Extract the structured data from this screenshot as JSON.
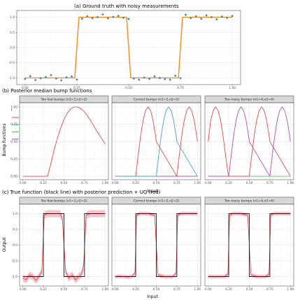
{
  "colors": {
    "panel_bg": "#ffffff",
    "grid_major": "#ebebeb",
    "grid_minor": "#f5f5f5",
    "panel_border": "#333333",
    "strip_bg": "#d9d9d9",
    "strip_border": "#333333",
    "points": "#3d87c0",
    "truth_orange": "#f28e1c",
    "truth_black": "#1a1a1a",
    "pred_red": "#e3383b",
    "band": "#f08fa0",
    "bump1": "#e64a4a",
    "bump2": "#4aa0c8",
    "bump3": "#5fbf5a",
    "bump4": "#b04fc0"
  },
  "chart_data": [
    {
      "type": "scatter",
      "title": "(a) Ground truth with noisy measurements",
      "xlim": [
        -0.04,
        1.04
      ],
      "ylim": [
        -1.22,
        1.22
      ],
      "x_ticks": [
        "0.00",
        "0.25",
        "0.50",
        "0.75",
        "1.00"
      ],
      "y_ticks": [
        "-1.0",
        "-0.5",
        "0.0",
        "0.5",
        "1.0"
      ],
      "truth_line": {
        "x": [
          0.0,
          0.24,
          0.25,
          0.26,
          0.49,
          0.5,
          0.51,
          0.74,
          0.75,
          0.76,
          1.0
        ],
        "y": [
          -1.0,
          -1.0,
          0.0,
          1.0,
          1.0,
          0.0,
          -1.0,
          -1.0,
          0.0,
          1.0,
          1.0
        ]
      },
      "points": {
        "x": [
          0.0,
          0.025,
          0.05,
          0.075,
          0.1,
          0.125,
          0.15,
          0.175,
          0.2,
          0.225,
          0.25,
          0.275,
          0.3,
          0.325,
          0.35,
          0.375,
          0.4,
          0.425,
          0.45,
          0.475,
          0.5,
          0.525,
          0.55,
          0.575,
          0.6,
          0.625,
          0.65,
          0.675,
          0.7,
          0.725,
          0.75,
          0.775,
          0.8,
          0.825,
          0.85,
          0.875,
          0.9,
          0.925,
          0.95,
          0.975,
          1.0
        ],
        "y": [
          -1.03,
          -0.94,
          -1.07,
          -1.01,
          -0.97,
          -0.91,
          -1.02,
          -1.08,
          -0.98,
          -0.95,
          -1.05,
          0.95,
          1.03,
          0.97,
          1.0,
          1.09,
          0.96,
          1.01,
          1.04,
          0.98,
          0.94,
          -1.02,
          -1.06,
          -0.99,
          -1.03,
          -0.95,
          -1.0,
          -1.04,
          -1.06,
          -0.93,
          -1.01,
          1.08,
          0.97,
          1.03,
          0.95,
          1.06,
          1.0,
          0.93,
          1.02,
          0.98,
          1.04
        ]
      }
    },
    {
      "type": "line",
      "title": "(b) Posterior median bump functions",
      "ylabel": "Bump functions",
      "xlabel": "Input",
      "xlim": [
        -0.04,
        1.04
      ],
      "ylim": [
        -0.05,
        1.06
      ],
      "x_ticks": [
        "0.00",
        "0.25",
        "0.50",
        "0.75",
        "1.00"
      ],
      "y_ticks": [
        "0.00",
        "0.25",
        "0.50",
        "0.75",
        "1.00"
      ],
      "legend": {
        "title": "i",
        "items": [
          "1",
          "2",
          "3",
          "4"
        ]
      },
      "panels": [
        {
          "label": "Too few bumps (n1=1,n2=2)",
          "series": [
            {
              "name": "1",
              "x": [
                0.0,
                0.3,
                0.34,
                0.38,
                0.42,
                0.46,
                0.5,
                0.54,
                0.58,
                0.62,
                0.66,
                0.7,
                0.74,
                0.78,
                0.82,
                0.86,
                0.9,
                0.94,
                0.98,
                1.0
              ],
              "y": [
                0.0,
                0.0,
                0.18,
                0.38,
                0.55,
                0.7,
                0.82,
                0.91,
                0.97,
                1.0,
                1.0,
                0.98,
                0.94,
                0.88,
                0.81,
                0.73,
                0.65,
                0.58,
                0.5,
                0.47
              ]
            }
          ]
        },
        {
          "label": "Correct bumps (n1=2,n2=2)",
          "series": [
            {
              "name": "1",
              "x": [
                0.0,
                0.25,
                0.28,
                0.31,
                0.34,
                0.37,
                0.4,
                0.43,
                0.46,
                0.49,
                0.5,
                0.75,
                0.78,
                0.81,
                0.84,
                0.87,
                0.9,
                0.93,
                0.96,
                0.99,
                1.0
              ],
              "y": [
                0.0,
                0.0,
                0.31,
                0.59,
                0.81,
                0.95,
                1.0,
                0.95,
                0.81,
                0.59,
                0.5,
                0.0,
                0.31,
                0.59,
                0.81,
                0.95,
                1.0,
                0.95,
                0.81,
                0.59,
                0.5
              ]
            },
            {
              "name": "2",
              "x": [
                0.0,
                0.03,
                0.06,
                0.09,
                0.12,
                0.15,
                0.18,
                0.21,
                0.24,
                0.25,
                0.5,
                0.53,
                0.56,
                0.59,
                0.62,
                0.65,
                0.68,
                0.71,
                0.74,
                0.75,
                1.0
              ],
              "y": [
                0.0,
                0.0,
                0.0,
                0.0,
                0.0,
                0.0,
                0.0,
                0.0,
                0.0,
                0.0,
                0.0,
                0.31,
                0.59,
                0.81,
                0.95,
                1.0,
                0.95,
                0.81,
                0.59,
                0.5,
                0.0
              ]
            },
            {
              "name": "3",
              "x": [
                0.0,
                1.0
              ],
              "y": [
                0.0,
                0.0
              ]
            },
            {
              "name": "4",
              "x": [
                0.0,
                1.0
              ],
              "y": [
                0.0,
                0.0
              ]
            }
          ]
        },
        {
          "label": "Too many bumps (n1=4,n2=4)",
          "series": [
            {
              "name": "1",
              "x": [
                0.0,
                0.03,
                0.06,
                0.09,
                0.12,
                0.15,
                0.18,
                0.21,
                0.24,
                0.25,
                0.5,
                0.53,
                0.56,
                0.59,
                0.62,
                0.65,
                0.68,
                0.71,
                0.74,
                0.75,
                1.0
              ],
              "y": [
                0.5,
                0.8,
                0.95,
                1.0,
                0.95,
                0.81,
                0.59,
                0.31,
                0.05,
                0.0,
                0.0,
                0.31,
                0.59,
                0.81,
                0.95,
                1.0,
                0.95,
                0.81,
                0.59,
                0.5,
                0.0
              ]
            },
            {
              "name": "4",
              "x": [
                0.0,
                0.25,
                0.28,
                0.31,
                0.34,
                0.37,
                0.4,
                0.43,
                0.46,
                0.49,
                0.5,
                0.75,
                0.78,
                0.81,
                0.84,
                0.87,
                0.9,
                0.93,
                0.96,
                0.99,
                1.0
              ],
              "y": [
                0.0,
                0.0,
                0.31,
                0.59,
                0.81,
                0.95,
                1.0,
                0.95,
                0.81,
                0.59,
                0.5,
                0.0,
                0.31,
                0.59,
                0.81,
                0.95,
                1.0,
                0.95,
                0.81,
                0.59,
                0.5
              ]
            },
            {
              "name": "3",
              "x": [
                0.0,
                1.0
              ],
              "y": [
                0.0,
                0.0
              ]
            }
          ]
        }
      ]
    },
    {
      "type": "line",
      "title": "(c) True function (black line) with posterior prediction + UQ (red)",
      "ylabel": "Output",
      "xlabel": "Input",
      "xlim": [
        -0.04,
        1.04
      ],
      "ylim": [
        -1.3,
        1.3
      ],
      "x_ticks": [
        "0.00",
        "0.25",
        "0.50",
        "0.75",
        "1.00"
      ],
      "y_ticks": [
        "-1.0",
        "-0.5",
        "0.0",
        "0.5",
        "1.0"
      ],
      "panels": [
        {
          "label": "Too few bumps (n1=1,n2=2)",
          "truth": {
            "x": [
              0.0,
              0.25,
              0.25,
              0.5,
              0.5,
              0.75,
              0.75,
              1.0
            ],
            "y": [
              -1.0,
              -1.0,
              1.0,
              1.0,
              -1.0,
              -1.0,
              1.0,
              1.0
            ]
          },
          "pred": {
            "x": [
              0.0,
              0.04,
              0.08,
              0.12,
              0.16,
              0.2,
              0.23,
              0.26,
              0.3,
              0.35,
              0.4,
              0.45,
              0.48,
              0.52,
              0.56,
              0.6,
              0.64,
              0.68,
              0.72,
              0.74,
              0.77,
              0.82,
              0.88,
              0.94,
              1.0
            ],
            "y": [
              -1.05,
              -1.1,
              -0.95,
              -1.0,
              -1.12,
              -0.98,
              -0.85,
              0.95,
              1.0,
              1.0,
              1.0,
              1.0,
              0.85,
              -0.85,
              -1.05,
              -0.95,
              -1.1,
              -1.0,
              -0.9,
              -0.6,
              0.95,
              1.0,
              1.0,
              1.0,
              1.0
            ]
          },
          "band": 0.11
        },
        {
          "label": "Correct bumps (n1=2,n2=2)",
          "truth": {
            "x": [
              0.0,
              0.25,
              0.25,
              0.5,
              0.5,
              0.75,
              0.75,
              1.0
            ],
            "y": [
              -1.0,
              -1.0,
              1.0,
              1.0,
              -1.0,
              -1.0,
              1.0,
              1.0
            ]
          },
          "pred": {
            "x": [
              0.0,
              0.05,
              0.1,
              0.15,
              0.2,
              0.24,
              0.26,
              0.3,
              0.4,
              0.48,
              0.52,
              0.6,
              0.7,
              0.74,
              0.76,
              0.8,
              0.9,
              1.0
            ],
            "y": [
              -1.0,
              -0.99,
              -1.0,
              -1.01,
              -1.0,
              -0.9,
              0.95,
              1.0,
              1.0,
              0.95,
              -0.95,
              -1.0,
              -1.0,
              -0.9,
              0.95,
              1.0,
              1.0,
              1.0
            ]
          },
          "band": 0.06
        },
        {
          "label": "Too many bumps (n1=4,n2=4)",
          "truth": {
            "x": [
              0.0,
              0.25,
              0.25,
              0.5,
              0.5,
              0.75,
              0.75,
              1.0
            ],
            "y": [
              -1.0,
              -1.0,
              1.0,
              1.0,
              -1.0,
              -1.0,
              1.0,
              1.0
            ]
          },
          "pred": {
            "x": [
              0.0,
              0.05,
              0.1,
              0.15,
              0.2,
              0.24,
              0.26,
              0.3,
              0.4,
              0.48,
              0.52,
              0.6,
              0.7,
              0.74,
              0.76,
              0.8,
              0.9,
              1.0
            ],
            "y": [
              -1.0,
              -1.0,
              -1.0,
              -1.0,
              -1.0,
              -0.92,
              0.95,
              1.0,
              1.0,
              0.95,
              -0.95,
              -1.0,
              -1.0,
              -0.92,
              0.95,
              1.0,
              1.0,
              1.0
            ]
          },
          "band": 0.06
        }
      ]
    }
  ]
}
